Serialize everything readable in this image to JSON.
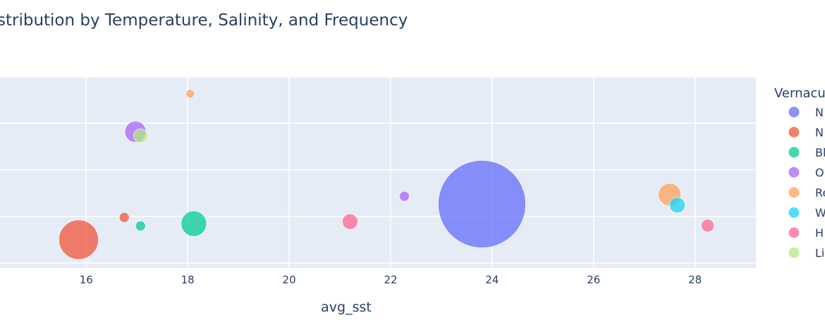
{
  "chart_data": {
    "type": "scatter",
    "title": "stribution by Temperature, Salinity, and Frequency",
    "xlabel": "avg_sst",
    "ylabel": "",
    "xlim": [
      14.3,
      29.2
    ],
    "ylim": [
      0,
      1
    ],
    "x_ticks": [
      16,
      18,
      20,
      22,
      24,
      26,
      28
    ],
    "grid": true,
    "legend": {
      "title": "Vernacu",
      "position": "right",
      "entries": [
        {
          "label": "N",
          "color": "#636efa"
        },
        {
          "label": "N",
          "color": "#ef553b"
        },
        {
          "label": "Bl",
          "color": "#00cc96"
        },
        {
          "label": "O",
          "color": "#ab63fa"
        },
        {
          "label": "Re",
          "color": "#ffa15a"
        },
        {
          "label": "W",
          "color": "#19d3f3"
        },
        {
          "label": "H",
          "color": "#ff6692"
        },
        {
          "label": "Li",
          "color": "#b6e880"
        }
      ]
    },
    "points": [
      {
        "x": 23.8,
        "y": 0.335,
        "size": 62,
        "series": 0
      },
      {
        "x": 15.85,
        "y": 0.148,
        "size": 28,
        "series": 1
      },
      {
        "x": 16.75,
        "y": 0.265,
        "size": 7,
        "series": 1
      },
      {
        "x": 18.12,
        "y": 0.232,
        "size": 18,
        "series": 2
      },
      {
        "x": 17.07,
        "y": 0.22,
        "size": 7,
        "series": 2
      },
      {
        "x": 16.97,
        "y": 0.715,
        "size": 15,
        "series": 3
      },
      {
        "x": 22.27,
        "y": 0.376,
        "size": 7,
        "series": 3
      },
      {
        "x": 18.05,
        "y": 0.915,
        "size": 6,
        "series": 4
      },
      {
        "x": 27.5,
        "y": 0.385,
        "size": 16,
        "series": 4
      },
      {
        "x": 27.65,
        "y": 0.33,
        "size": 11,
        "series": 5
      },
      {
        "x": 21.2,
        "y": 0.243,
        "size": 11,
        "series": 6
      },
      {
        "x": 28.25,
        "y": 0.222,
        "size": 9,
        "series": 6
      },
      {
        "x": 17.07,
        "y": 0.694,
        "size": 10,
        "series": 7
      }
    ]
  }
}
